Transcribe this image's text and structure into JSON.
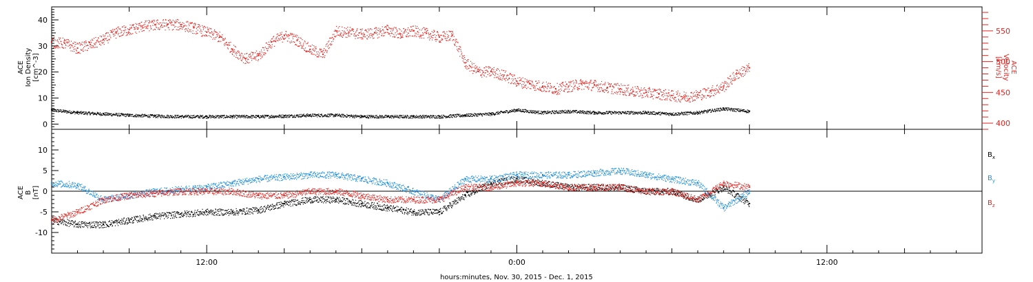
{
  "colors": {
    "black": "#000000",
    "red": "#e8211d",
    "blue": "#1f8ee0"
  },
  "xlabel": "hours:minutes, Nov. 30, 2015 - Dec. 1, 2015",
  "chart_data": [
    {
      "type": "scatter",
      "title": "",
      "xlabel": "hours:minutes, Nov. 30, 2015 - Dec. 1, 2015",
      "x_unit": "hours since 2015-11-30 00:00 UT",
      "xlim": [
        6.0,
        42.0
      ],
      "x_ticks": [
        "12:00",
        "0:00",
        "12:00"
      ],
      "left_axis": {
        "label": [
          "ACE",
          "Ion Density",
          "[cm^-3]"
        ],
        "ylim": [
          -2,
          45
        ],
        "ticks": [
          "0",
          "10",
          "20",
          "30",
          "40"
        ]
      },
      "right_axis": {
        "label": [
          "ACE",
          "Velocity",
          "[km/s]"
        ],
        "ylim": [
          390,
          589
        ],
        "ticks": [
          "400",
          "450",
          "500",
          "550"
        ]
      },
      "series": [
        {
          "name": "Ion Density",
          "axis": "left",
          "color": "#000000",
          "x": [
            6,
            7,
            8,
            9,
            10,
            11,
            12,
            13,
            14,
            15,
            16,
            17,
            18,
            19,
            20,
            21,
            22,
            23,
            24,
            25,
            26,
            27,
            28,
            29,
            30,
            31,
            32,
            33
          ],
          "y": [
            5.5,
            4.5,
            4.0,
            3.5,
            3.2,
            3.0,
            3.0,
            3.0,
            3.0,
            3.2,
            3.5,
            3.5,
            3.0,
            3.0,
            3.0,
            3.0,
            3.5,
            4.0,
            5.5,
            4.5,
            5.0,
            4.5,
            4.5,
            4.5,
            4.0,
            4.5,
            6.0,
            5.0
          ]
        },
        {
          "name": "Velocity",
          "axis": "right",
          "color": "#e8211d",
          "x": [
            6.0,
            6.5,
            7.0,
            7.5,
            8.0,
            8.5,
            9.0,
            9.5,
            10.0,
            10.5,
            11.0,
            11.5,
            12.0,
            12.5,
            13.0,
            13.5,
            14.0,
            14.5,
            15.0,
            15.5,
            16.0,
            16.5,
            17.0,
            17.5,
            18.0,
            18.5,
            19.0,
            19.5,
            20.0,
            20.5,
            21.0,
            21.5,
            22.0,
            22.5,
            23.0,
            23.5,
            24.0,
            24.5,
            25.0,
            25.5,
            26.0,
            26.5,
            27.0,
            27.5,
            28.0,
            28.5,
            29.0,
            29.5,
            30.0,
            30.5,
            31.0,
            31.5,
            32.0,
            32.5,
            33.0
          ],
          "y": [
            532,
            530,
            522,
            528,
            536,
            548,
            552,
            558,
            560,
            561,
            560,
            555,
            548,
            540,
            520,
            505,
            510,
            532,
            543,
            535,
            520,
            512,
            550,
            548,
            545,
            547,
            552,
            545,
            550,
            546,
            540,
            543,
            498,
            484,
            484,
            478,
            468,
            464,
            460,
            456,
            460,
            464,
            462,
            458,
            456,
            452,
            450,
            448,
            445,
            443,
            446,
            452,
            460,
            480,
            490
          ]
        }
      ]
    },
    {
      "type": "scatter",
      "xlabel": "hours:minutes, Nov. 30, 2015 - Dec. 1, 2015",
      "x_unit": "hours since 2015-11-30 00:00 UT",
      "xlim": [
        6.0,
        42.0
      ],
      "x_ticks": [
        "12:00",
        "0:00",
        "12:00"
      ],
      "ylabel": [
        "ACE",
        "B",
        "[nT]"
      ],
      "ylim": [
        -15,
        15
      ],
      "y_ticks": [
        "-10",
        "-5",
        "0",
        "5",
        "10"
      ],
      "zero_line": true,
      "legend": {
        "placement": "right",
        "entries": [
          "B",
          "B",
          "B"
        ],
        "subscripts": [
          "x",
          "y",
          "z"
        ]
      },
      "series": [
        {
          "name": "Bx",
          "color": "#000000",
          "x": [
            6.0,
            7.0,
            8.0,
            9.0,
            10.0,
            11.0,
            12.0,
            13.0,
            14.0,
            15.0,
            16.0,
            17.0,
            18.0,
            19.0,
            20.0,
            21.0,
            22.0,
            23.0,
            24.0,
            25.0,
            26.0,
            27.0,
            28.0,
            29.0,
            30.0,
            31.0,
            32.0,
            33.0
          ],
          "y": [
            -7,
            -8,
            -8,
            -7,
            -6,
            -5.5,
            -5,
            -5,
            -4.5,
            -3,
            -2,
            -2,
            -3,
            -4,
            -5,
            -5,
            -1,
            2,
            3,
            2,
            1,
            1,
            1,
            0,
            0,
            -2,
            1,
            -3
          ]
        },
        {
          "name": "By",
          "color": "#1f8ee0",
          "x": [
            6.0,
            7.0,
            8.0,
            9.0,
            10.0,
            11.0,
            12.0,
            13.0,
            14.0,
            15.0,
            16.0,
            17.0,
            18.0,
            19.0,
            20.0,
            21.0,
            22.0,
            23.0,
            24.0,
            25.0,
            26.0,
            27.0,
            28.0,
            29.0,
            30.0,
            31.0,
            32.0,
            33.0
          ],
          "y": [
            2,
            1.5,
            -2,
            -1,
            0,
            0.5,
            1,
            2,
            3,
            3.5,
            4,
            4,
            3,
            2,
            0,
            -2,
            3,
            3,
            4,
            4,
            4,
            4.5,
            5,
            4,
            3,
            2,
            -4,
            0
          ]
        },
        {
          "name": "Bz",
          "color": "#e8211d",
          "x": [
            6.0,
            7.0,
            8.0,
            9.0,
            10.0,
            11.0,
            12.0,
            13.0,
            14.0,
            15.0,
            16.0,
            17.0,
            18.0,
            19.0,
            20.0,
            21.0,
            22.0,
            23.0,
            24.0,
            25.0,
            26.0,
            27.0,
            28.0,
            29.0,
            30.0,
            31.0,
            32.0,
            33.0
          ],
          "y": [
            -7,
            -5,
            -2,
            -1,
            -0.5,
            0,
            0,
            0,
            -1,
            -1,
            0,
            0,
            -1,
            -2,
            -2,
            -2,
            1,
            1,
            2,
            2,
            1,
            1,
            1,
            0,
            0,
            -2,
            2,
            1
          ]
        }
      ]
    }
  ]
}
